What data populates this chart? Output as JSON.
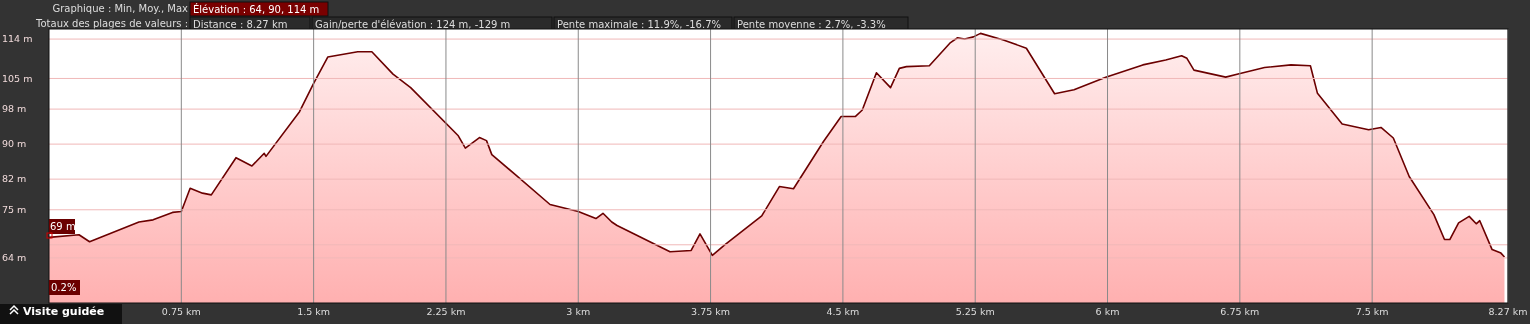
{
  "chart_data": {
    "type": "area",
    "annotations": [
      "Graphique : Min, Moy., Max",
      "Élévation : 64, 90, 114 m",
      "Totaux des plages de valeurs :",
      "Distance : 8.27 km",
      "Gain/perte d'élévation : 124 m, -129 m",
      "Pente maximale : 11.9%, -16.7%",
      "Pente moyenne : 2.7%, -3.3%",
      {
        "text": "69 m",
        "x": 0,
        "y": 69
      },
      "0.2%",
      "Visite guidée"
    ],
    "series": [
      {
        "color": "#6b0000",
        "x": [
          0,
          0.17,
          0.23,
          0.51,
          0.59,
          0.7,
          0.75,
          0.8,
          0.87,
          0.92,
          1.06,
          1.15,
          1.22,
          1.23,
          1.42,
          1.5,
          1.58,
          1.75,
          1.83,
          1.95,
          2.05,
          2.32,
          2.36,
          2.44,
          2.48,
          2.51,
          2.65,
          2.84,
          3.0,
          3.1,
          3.14,
          3.19,
          3.22,
          3.52,
          3.64,
          3.69,
          3.76,
          3.83,
          4.04,
          4.14,
          4.22,
          4.39,
          4.49,
          4.57,
          4.61,
          4.69,
          4.77,
          4.82,
          4.86,
          4.99,
          5.11,
          5.15,
          5.19,
          5.24,
          5.28,
          5.41,
          5.54,
          5.7,
          5.81,
          5.99,
          6.2,
          6.33,
          6.42,
          6.45,
          6.49,
          6.67,
          6.74,
          6.89,
          7.04,
          7.15,
          7.19,
          7.33,
          7.48,
          7.55,
          7.62,
          7.71,
          7.85,
          7.91,
          7.94,
          7.99,
          8.05,
          8.09,
          8.11,
          8.18,
          8.23,
          8.25
        ],
        "values": [
          68.7,
          69.3,
          67.7,
          72.2,
          72.7,
          74.4,
          74.6,
          79.9,
          78.8,
          78.4,
          86.9,
          85.0,
          87.9,
          87.2,
          97.4,
          103.9,
          109.9,
          111.1,
          111.1,
          106.0,
          102.9,
          91.9,
          89.1,
          91.5,
          90.8,
          87.6,
          82.8,
          76.2,
          74.6,
          73.0,
          74.2,
          72.2,
          71.4,
          65.4,
          65.7,
          69.5,
          64.6,
          67.0,
          73.6,
          80.3,
          79.8,
          90.6,
          96.3,
          96.3,
          97.8,
          106.3,
          102.9,
          107.3,
          107.7,
          107.9,
          113.2,
          114.3,
          114.0,
          114.5,
          115.3,
          113.8,
          111.9,
          101.5,
          102.4,
          105.3,
          108.1,
          109.2,
          110.2,
          109.6,
          106.9,
          105.3,
          106.0,
          107.5,
          108.1,
          107.9,
          101.6,
          94.6,
          93.3,
          93.8,
          91.4,
          82.6,
          73.9,
          68.2,
          68.2,
          72.0,
          73.5,
          71.8,
          72.5,
          65.9,
          65.1,
          64.2
        ]
      }
    ],
    "xlim": [
      0,
      8.27
    ],
    "xticks": [
      {
        "value": 0.75,
        "label": "0.75 km"
      },
      {
        "value": 1.5,
        "label": "1.5 km"
      },
      {
        "value": 2.25,
        "label": "2.25 km"
      },
      {
        "value": 3,
        "label": "3 km"
      },
      {
        "value": 3.75,
        "label": "3.75 km"
      },
      {
        "value": 4.5,
        "label": "4.5 km"
      },
      {
        "value": 5.25,
        "label": "5.25 km"
      },
      {
        "value": 6,
        "label": "6 km"
      },
      {
        "value": 6.75,
        "label": "6.75 km"
      },
      {
        "value": 7.5,
        "label": "7.5 km"
      },
      {
        "value": 8.27,
        "label": "8.27 km"
      }
    ],
    "ylim": [
      53.7,
      116.3
    ],
    "yticks": [
      {
        "value": 114,
        "label": "114 m"
      },
      {
        "value": 105,
        "label": "105 m"
      },
      {
        "value": 98,
        "label": "98 m"
      },
      {
        "value": 90,
        "label": "90 m"
      },
      {
        "value": 82,
        "label": "82 m"
      },
      {
        "value": 75,
        "label": "75 m"
      },
      {
        "value": 67,
        "label": null
      },
      {
        "value": 64,
        "label": "64 m"
      }
    ],
    "grid": true
  }
}
